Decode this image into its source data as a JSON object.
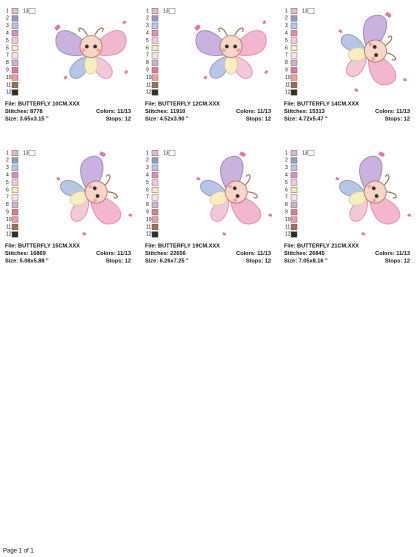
{
  "palette": [
    {
      "label": "1",
      "color": "#e6b8c8"
    },
    {
      "label": "2",
      "color": "#8e9cc6"
    },
    {
      "label": "3",
      "color": "#b8c6e6"
    },
    {
      "label": "4",
      "color": "#e58fae"
    },
    {
      "label": "5",
      "color": "#f2c9d8"
    },
    {
      "label": "6",
      "color": "#f7efbf"
    },
    {
      "label": "7",
      "color": "#f7e6de"
    },
    {
      "label": "8",
      "color": "#d6aed0"
    },
    {
      "label": "9",
      "color": "#e67797"
    },
    {
      "label": "10",
      "color": "#ef9f9f"
    },
    {
      "label": "11",
      "color": "#a06f4e"
    },
    {
      "label": "12",
      "color": "#2e2e2e"
    },
    {
      "label": "13",
      "color": "#ffffff"
    }
  ],
  "designs": [
    {
      "file": "File: BUTTERFLY 10CM.XXX",
      "stitches": "Stitches: 8778",
      "colors": "Colors: 11/13",
      "size": "Size: 3.65x3.15 \"",
      "stops": "Stops: 12"
    },
    {
      "file": "File: BUTTERFLY 12CM.XXX",
      "stitches": "Stitches: 11910",
      "colors": "Colors: 11/13",
      "size": "Size: 4.52x3.90 \"",
      "stops": "Stops: 12"
    },
    {
      "file": "File: BUTTERFLY 14CM.XXX",
      "stitches": "Stitches: 15313",
      "colors": "Colors: 11/13",
      "size": "Size: 4.72x5.47 \"",
      "stops": "Stops: 12"
    },
    {
      "file": "File: BUTTERFLY 15CM.XXX",
      "stitches": "Stitches: 16869",
      "colors": "Colors: 11/13",
      "size": "Size: 5.08x5.88 \"",
      "stops": "Stops: 12"
    },
    {
      "file": "File: BUTTERFLY 19CM.XXX",
      "stitches": "Stitches: 22656",
      "colors": "Colors: 11/13",
      "size": "Size: 6.26x7.25 \"",
      "stops": "Stops: 12"
    },
    {
      "file": "File: BUTTERFLY 21CM.XXX",
      "stitches": "Stitches: 26845",
      "colors": "Colors: 11/13",
      "size": "Size: 7.05x8.16 \"",
      "stops": "Stops: 12"
    }
  ],
  "footer": "Page 1 of 1"
}
